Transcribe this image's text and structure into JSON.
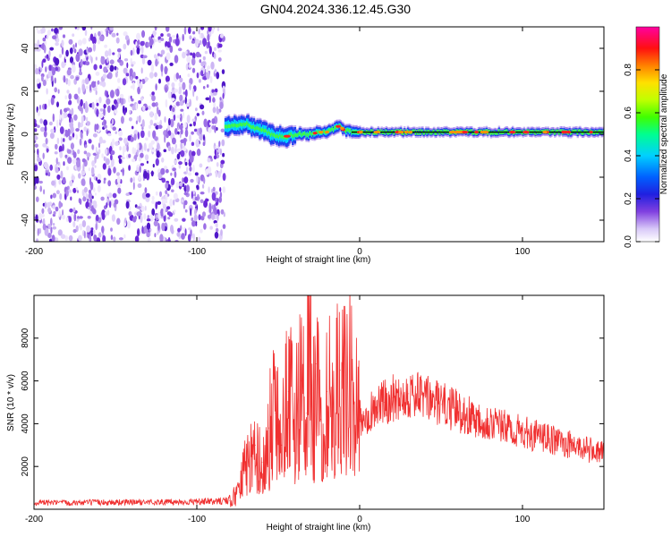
{
  "title": "GN04.2024.336.12.45.G30",
  "colors": {
    "snr_line": "#f03030",
    "colormap": [
      "#ffffff",
      "#c8b0f0",
      "#8040e0",
      "#4020d0",
      "#0040ff",
      "#00d0ff",
      "#00ff80",
      "#40ff00",
      "#c0ff00",
      "#ffff00",
      "#ff8000",
      "#ff0000",
      "#ff00a0"
    ]
  },
  "chart_data": [
    {
      "type": "heatmap",
      "xlabel": "Height of straight line (km)",
      "ylabel": "Frequency (Hz)",
      "xlim": [
        -200,
        150
      ],
      "ylim": [
        -50,
        50
      ],
      "xticks": [
        -200,
        -100,
        0,
        100
      ],
      "xtick_labels": [
        "-200",
        "-100",
        "0",
        "100"
      ],
      "yticks": [
        -40,
        -20,
        0,
        20,
        40
      ],
      "ytick_labels": [
        "-40",
        "-20",
        "0",
        "20",
        "40"
      ],
      "colorbar": {
        "label": "Normalized spectral amplitude",
        "range": [
          0,
          1
        ],
        "ticks": [
          0.0,
          0.2,
          0.4,
          0.6,
          0.8
        ],
        "tick_labels": [
          "0.0",
          "0.2",
          "0.4",
          "0.6",
          "0.8"
        ]
      },
      "noise_region_x": [
        -200,
        -83
      ],
      "signal_track": {
        "x": [
          -83,
          -75,
          -70,
          -65,
          -60,
          -55,
          -50,
          -45,
          -40,
          -35,
          -30,
          -25,
          -20,
          -15,
          -12,
          -10,
          -5,
          0,
          10,
          20,
          40,
          60,
          80,
          100,
          120,
          150
        ],
        "frequency": [
          4,
          4,
          5,
          3,
          2,
          0,
          -1,
          -1,
          0,
          0,
          0,
          1,
          1,
          3,
          4,
          2,
          1,
          1,
          1,
          1,
          1,
          1,
          1,
          1,
          1,
          1
        ]
      }
    },
    {
      "type": "line",
      "xlabel": "Height of straight line (km)",
      "ylabel": "SNR (10 * v/v)",
      "xlim": [
        -200,
        150
      ],
      "ylim": [
        0,
        10000
      ],
      "xticks": [
        -200,
        -100,
        0,
        100
      ],
      "xtick_labels": [
        "-200",
        "-100",
        "0",
        "100"
      ],
      "yticks": [
        2000,
        4000,
        6000,
        8000
      ],
      "ytick_labels": [
        "2000",
        "4000",
        "6000",
        "8000"
      ],
      "series": [
        {
          "x": [
            -200,
            -180,
            -160,
            -140,
            -120,
            -100,
            -90,
            -80,
            -76,
            -72,
            -68,
            -64,
            -60,
            -56,
            -52,
            -48,
            -44,
            -40,
            -36,
            -33,
            -31,
            -29,
            -27,
            -24,
            -20,
            -16,
            -12,
            -8,
            -6,
            -4,
            -2,
            0,
            5,
            10,
            15,
            20,
            25,
            30,
            35,
            40,
            50,
            60,
            70,
            80,
            90,
            100,
            110,
            120,
            130,
            140,
            150
          ],
          "y": [
            300,
            300,
            320,
            330,
            330,
            350,
            360,
            400,
            700,
            1800,
            2500,
            3000,
            2200,
            3800,
            4500,
            3000,
            5500,
            4200,
            6000,
            4500,
            9800,
            3500,
            6800,
            4200,
            5500,
            5000,
            6500,
            5200,
            7800,
            3500,
            4600,
            4200,
            4500,
            4800,
            5000,
            5200,
            5300,
            5400,
            5300,
            5200,
            4900,
            4600,
            4300,
            4100,
            3800,
            3600,
            3400,
            3200,
            3000,
            2800,
            2600
          ]
        }
      ]
    }
  ]
}
